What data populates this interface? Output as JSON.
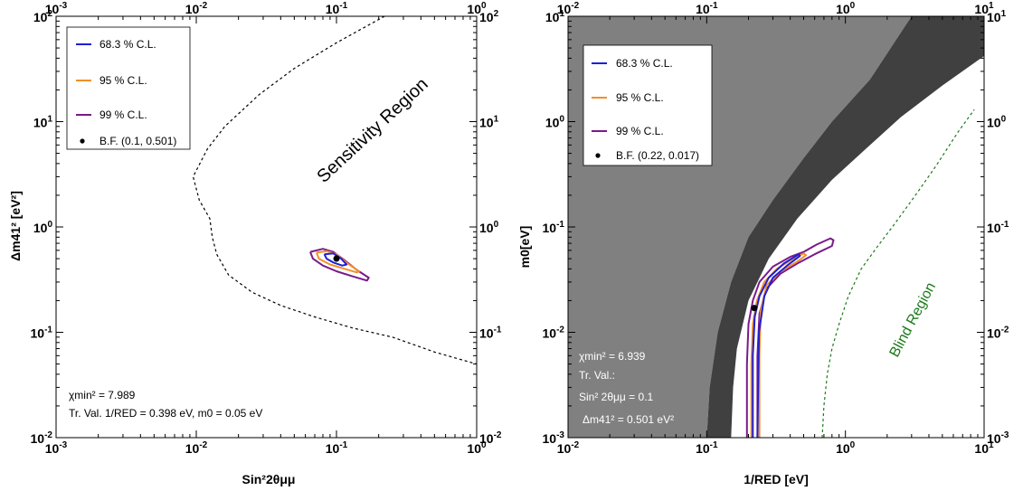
{
  "chart_data": [
    {
      "type": "line",
      "id": "left",
      "xlabel": "Sin²2θμμ",
      "ylabel": "Δm41² [eV²]",
      "xlim": [
        0.001,
        1
      ],
      "ylim": [
        0.01,
        100
      ],
      "xscale": "log",
      "yscale": "log",
      "x_ticks": [
        {
          "base": "10",
          "exp": "-3",
          "v": 0.001
        },
        {
          "base": "10",
          "exp": "-2",
          "v": 0.01
        },
        {
          "base": "10",
          "exp": "-1",
          "v": 0.1
        },
        {
          "base": "10",
          "exp": "0",
          "v": 1
        }
      ],
      "y_ticks": [
        {
          "base": "10",
          "exp": "-2",
          "v": 0.01
        },
        {
          "base": "10",
          "exp": "-1",
          "v": 0.1
        },
        {
          "base": "10",
          "exp": "0",
          "v": 1
        },
        {
          "base": "10",
          "exp": "1",
          "v": 10
        },
        {
          "base": "10",
          "exp": "2",
          "v": 100
        }
      ],
      "legend": [
        {
          "label": "68.3 % C.L.",
          "color": "#1f1fd6",
          "kind": "line"
        },
        {
          "label": "95 % C.L.",
          "color": "#f0902a",
          "kind": "line"
        },
        {
          "label": "99 % C.L.",
          "color": "#7a1a8a",
          "kind": "line"
        },
        {
          "label": "B.F. (0.1, 0.501)",
          "color": "#000000",
          "kind": "dot"
        }
      ],
      "best_fit": {
        "x": 0.1,
        "y": 0.501
      },
      "sensitivity_boundary": {
        "name": "Sensitivity Region",
        "style": "dashed",
        "points": [
          [
            0.22,
            100
          ],
          [
            0.1,
            56
          ],
          [
            0.05,
            32
          ],
          [
            0.028,
            18
          ],
          [
            0.016,
            9
          ],
          [
            0.012,
            5.5
          ],
          [
            0.0095,
            3
          ],
          [
            0.0105,
            1.8
          ],
          [
            0.0125,
            1.2
          ],
          [
            0.013,
            0.8
          ],
          [
            0.014,
            0.55
          ],
          [
            0.017,
            0.35
          ],
          [
            0.025,
            0.24
          ],
          [
            0.04,
            0.18
          ],
          [
            0.07,
            0.14
          ],
          [
            0.13,
            0.11
          ],
          [
            0.25,
            0.09
          ],
          [
            0.5,
            0.065
          ],
          [
            1.0,
            0.05
          ]
        ]
      },
      "contours": [
        {
          "level": "99 % C.L.",
          "color": "#7a1a8a",
          "points": [
            [
              0.065,
              0.58
            ],
            [
              0.08,
              0.62
            ],
            [
              0.095,
              0.58
            ],
            [
              0.115,
              0.48
            ],
            [
              0.14,
              0.39
            ],
            [
              0.17,
              0.33
            ],
            [
              0.165,
              0.31
            ],
            [
              0.13,
              0.34
            ],
            [
              0.1,
              0.38
            ],
            [
              0.08,
              0.43
            ],
            [
              0.068,
              0.5
            ],
            [
              0.065,
              0.58
            ]
          ]
        },
        {
          "level": "95 % C.L.",
          "color": "#f0902a",
          "points": [
            [
              0.072,
              0.57
            ],
            [
              0.085,
              0.59
            ],
            [
              0.1,
              0.55
            ],
            [
              0.12,
              0.45
            ],
            [
              0.145,
              0.38
            ],
            [
              0.14,
              0.37
            ],
            [
              0.115,
              0.4
            ],
            [
              0.09,
              0.44
            ],
            [
              0.075,
              0.5
            ],
            [
              0.072,
              0.57
            ]
          ]
        },
        {
          "level": "68.3 % C.L.",
          "color": "#1f1fd6",
          "points": [
            [
              0.082,
              0.55
            ],
            [
              0.095,
              0.56
            ],
            [
              0.108,
              0.5
            ],
            [
              0.118,
              0.44
            ],
            [
              0.11,
              0.43
            ],
            [
              0.095,
              0.46
            ],
            [
              0.085,
              0.5
            ],
            [
              0.082,
              0.55
            ]
          ]
        }
      ],
      "annotations": [
        {
          "text": "Sensitivity Region"
        },
        {
          "text": "χmin² = 7.989"
        },
        {
          "text": "Tr. Val. 1/RED = 0.398 eV, m0 = 0.05 eV"
        }
      ]
    },
    {
      "type": "line",
      "id": "right",
      "xlabel": "1/RED [eV]",
      "ylabel": "m0[eV]",
      "xlim": [
        0.01,
        10
      ],
      "ylim": [
        0.001,
        10
      ],
      "xscale": "log",
      "yscale": "log",
      "x_ticks": [
        {
          "base": "10",
          "exp": "-2",
          "v": 0.01
        },
        {
          "base": "10",
          "exp": "-1",
          "v": 0.1
        },
        {
          "base": "10",
          "exp": "0",
          "v": 1
        },
        {
          "base": "10",
          "exp": "1",
          "v": 10
        }
      ],
      "y_ticks": [
        {
          "base": "10",
          "exp": "-3",
          "v": 0.001
        },
        {
          "base": "10",
          "exp": "-2",
          "v": 0.01
        },
        {
          "base": "10",
          "exp": "-1",
          "v": 0.1
        },
        {
          "base": "10",
          "exp": "0",
          "v": 1
        },
        {
          "base": "10",
          "exp": "1",
          "v": 10
        }
      ],
      "legend": [
        {
          "label": "68.3 % C.L.",
          "color": "#1f1fd6",
          "kind": "line"
        },
        {
          "label": "95 % C.L.",
          "color": "#f0902a",
          "kind": "line"
        },
        {
          "label": "99 % C.L.",
          "color": "#7a1a8a",
          "kind": "line"
        },
        {
          "label": "B.F. (0.22, 0.017)",
          "color": "#000000",
          "kind": "dot"
        }
      ],
      "best_fit": {
        "x": 0.22,
        "y": 0.017
      },
      "excluded_light": {
        "color": "#808080",
        "points": [
          [
            0.01,
            0.001
          ],
          [
            0.01,
            10
          ],
          [
            3.0,
            10
          ],
          [
            1.5,
            2.5
          ],
          [
            0.8,
            1.0
          ],
          [
            0.5,
            0.45
          ],
          [
            0.3,
            0.18
          ],
          [
            0.2,
            0.08
          ],
          [
            0.15,
            0.03
          ],
          [
            0.12,
            0.01
          ],
          [
            0.105,
            0.003
          ],
          [
            0.1,
            0.001
          ]
        ]
      },
      "excluded_dark": {
        "color": "#404040",
        "points": [
          [
            0.1,
            0.001
          ],
          [
            0.105,
            0.003
          ],
          [
            0.12,
            0.01
          ],
          [
            0.15,
            0.03
          ],
          [
            0.2,
            0.08
          ],
          [
            0.3,
            0.18
          ],
          [
            0.5,
            0.45
          ],
          [
            0.8,
            1.0
          ],
          [
            1.5,
            2.5
          ],
          [
            3.0,
            10
          ],
          [
            10,
            10
          ],
          [
            10,
            4.2
          ],
          [
            5,
            2.2
          ],
          [
            2.5,
            1.1
          ],
          [
            1.4,
            0.55
          ],
          [
            0.8,
            0.28
          ],
          [
            0.45,
            0.12
          ],
          [
            0.28,
            0.05
          ],
          [
            0.2,
            0.02
          ],
          [
            0.165,
            0.007
          ],
          [
            0.155,
            0.003
          ],
          [
            0.15,
            0.001
          ]
        ]
      },
      "blind_boundary": {
        "name": "Blind Region",
        "style": "dashed",
        "color": "#1a7a1a",
        "points": [
          [
            0.68,
            0.001
          ],
          [
            0.7,
            0.002
          ],
          [
            0.74,
            0.004
          ],
          [
            0.8,
            0.007
          ],
          [
            0.9,
            0.012
          ],
          [
            1.05,
            0.022
          ],
          [
            1.3,
            0.04
          ],
          [
            1.7,
            0.065
          ],
          [
            2.3,
            0.11
          ],
          [
            3.2,
            0.2
          ],
          [
            4.5,
            0.38
          ],
          [
            6.5,
            0.8
          ],
          [
            8.5,
            1.3
          ]
        ]
      },
      "contours": [
        {
          "level": "99 % C.L.",
          "color": "#7a1a8a",
          "points": [
            [
              0.195,
              0.001
            ],
            [
              0.195,
              0.005
            ],
            [
              0.2,
              0.012
            ],
            [
              0.215,
              0.02
            ],
            [
              0.24,
              0.03
            ],
            [
              0.3,
              0.042
            ],
            [
              0.4,
              0.052
            ],
            [
              0.5,
              0.058
            ],
            [
              0.62,
              0.068
            ],
            [
              0.78,
              0.078
            ],
            [
              0.82,
              0.075
            ],
            [
              0.8,
              0.066
            ],
            [
              0.6,
              0.055
            ],
            [
              0.45,
              0.045
            ],
            [
              0.34,
              0.036
            ],
            [
              0.27,
              0.026
            ],
            [
              0.24,
              0.015
            ],
            [
              0.232,
              0.006
            ],
            [
              0.232,
              0.001
            ]
          ]
        },
        {
          "level": "95 % C.L.",
          "color": "#f0902a",
          "points": [
            [
              0.21,
              0.001
            ],
            [
              0.21,
              0.005
            ],
            [
              0.215,
              0.012
            ],
            [
              0.23,
              0.02
            ],
            [
              0.26,
              0.03
            ],
            [
              0.32,
              0.04
            ],
            [
              0.42,
              0.05
            ],
            [
              0.5,
              0.056
            ],
            [
              0.52,
              0.054
            ],
            [
              0.44,
              0.046
            ],
            [
              0.34,
              0.038
            ],
            [
              0.27,
              0.028
            ],
            [
              0.245,
              0.016
            ],
            [
              0.24,
              0.006
            ],
            [
              0.24,
              0.001
            ]
          ]
        },
        {
          "level": "68.3 % C.L.",
          "color": "#1f1fd6",
          "points": [
            [
              0.215,
              0.001
            ],
            [
              0.215,
              0.006
            ],
            [
              0.222,
              0.014
            ],
            [
              0.24,
              0.022
            ],
            [
              0.28,
              0.033
            ],
            [
              0.36,
              0.045
            ],
            [
              0.46,
              0.055
            ],
            [
              0.47,
              0.053
            ],
            [
              0.38,
              0.043
            ],
            [
              0.3,
              0.033
            ],
            [
              0.26,
              0.022
            ],
            [
              0.238,
              0.01
            ],
            [
              0.232,
              0.001
            ]
          ]
        }
      ],
      "annotations": [
        {
          "text": "Blind Region"
        },
        {
          "text": "χmin² = 6.939"
        },
        {
          "text": "Tr. Val.:"
        },
        {
          "text": "Sin² 2θμμ = 0.1"
        },
        {
          "text": "Δm41² = 0.501 eV²"
        }
      ]
    }
  ]
}
